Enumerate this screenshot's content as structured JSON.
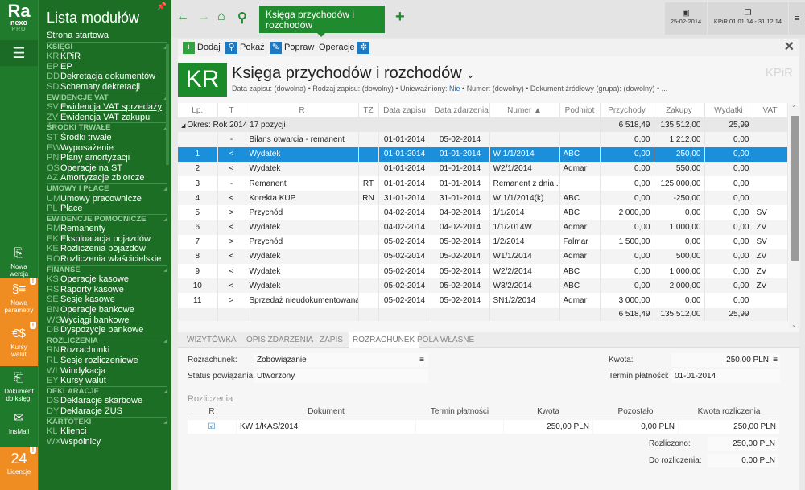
{
  "logo": {
    "line1": "Ra",
    "line2": "nexo",
    "line3": "PRO"
  },
  "side_tiles": [
    {
      "label1": "Nowa",
      "label2": "wersja",
      "icon": "book-arrow-icon",
      "color": "#1f7a2b"
    },
    {
      "label1": "Nowe",
      "label2": "parametry",
      "icon": "paragraph-list-icon",
      "color": "#ef8d23",
      "badge": "!"
    },
    {
      "label1": "Kursy",
      "label2": "walut",
      "icon": "currency-icon",
      "color": "#ef8d23",
      "badge": "!"
    },
    {
      "label1": "Dokument",
      "label2": "do księg.",
      "icon": "document-arrow-icon",
      "color": "#1f7a2b"
    },
    {
      "label1": "InsMail",
      "label2": "",
      "icon": "envelope-icon",
      "color": "#1f7a2b"
    },
    {
      "label1": "Licencje",
      "label2": "",
      "icon_text": "24",
      "color": "#ef8d23",
      "badge": "!"
    }
  ],
  "modules": {
    "title": "Lista modułów",
    "start": "Strona startowa",
    "sections": [
      {
        "name": "KSIĘGI",
        "items": [
          [
            "KR",
            "KPiR"
          ],
          [
            "EP",
            "EP"
          ],
          [
            "DD",
            "Dekretacja dokumentów"
          ],
          [
            "SD",
            "Schematy dekretacji"
          ]
        ]
      },
      {
        "name": "EWIDENCJE VAT",
        "items": [
          [
            "SV",
            "Ewidencja VAT sprzedaży"
          ],
          [
            "ZV",
            "Ewidencja VAT zakupu"
          ]
        ]
      },
      {
        "name": "ŚRODKI TRWAŁE",
        "items": [
          [
            "ST",
            "Środki trwałe"
          ],
          [
            "EW",
            "Wyposażenie"
          ],
          [
            "PN",
            "Plany amortyzacji"
          ],
          [
            "OS",
            "Operacje na ŚT"
          ],
          [
            "AZ",
            "Amortyzacje zbiorcze"
          ]
        ]
      },
      {
        "name": "UMOWY I PŁACE",
        "items": [
          [
            "UM",
            "Umowy pracownicze"
          ],
          [
            "PL",
            "Płace"
          ]
        ]
      },
      {
        "name": "EWIDENCJE POMOCNICZE",
        "items": [
          [
            "RM",
            "Remanenty"
          ],
          [
            "EK",
            "Eksploatacja pojazdów"
          ],
          [
            "KE",
            "Rozliczenia pojazdów"
          ],
          [
            "RO",
            "Rozliczenia właścicielskie"
          ]
        ]
      },
      {
        "name": "FINANSE",
        "items": [
          [
            "KS",
            "Operacje kasowe"
          ],
          [
            "RS",
            "Raporty kasowe"
          ],
          [
            "SE",
            "Sesje kasowe"
          ],
          [
            "BN",
            "Operacje bankowe"
          ],
          [
            "WG",
            "Wyciągi bankowe"
          ],
          [
            "DB",
            "Dyspozycje bankowe"
          ]
        ]
      },
      {
        "name": "ROZLICZENIA",
        "items": [
          [
            "RN",
            "Rozrachunki"
          ],
          [
            "RL",
            "Sesje rozliczeniowe"
          ],
          [
            "WI",
            "Windykacja"
          ],
          [
            "EY",
            "Kursy walut"
          ]
        ]
      },
      {
        "name": "DEKLARACJE",
        "items": [
          [
            "DS",
            "Deklaracje skarbowe"
          ],
          [
            "DY",
            "Deklaracje ZUS"
          ]
        ]
      },
      {
        "name": "KARTOTEKI",
        "items": [
          [
            "KL",
            "Klienci"
          ],
          [
            "WX",
            "Wspólnicy"
          ]
        ]
      }
    ]
  },
  "topbar": {
    "tab": "Księga przychodów i rozchodów",
    "date": "25-02-2014",
    "period": "KPiR  01.01.14 - 31.12.14"
  },
  "toolbar": {
    "add": "Dodaj",
    "show": "Pokaż",
    "edit": "Popraw",
    "ops": "Operacje"
  },
  "header": {
    "badge": "KR",
    "title": "Księga przychodów i rozchodów",
    "watermark": "KPiR",
    "filters": [
      [
        "Data zapisu:",
        "(dowolna)"
      ],
      [
        "Rodzaj zapisu:",
        "(dowolny)"
      ],
      [
        "Unieważniony:",
        "Nie"
      ],
      [
        "Numer:",
        "(dowolny)"
      ],
      [
        "Dokument źródłowy (grupa):",
        "(dowolny)"
      ]
    ],
    "more": "..."
  },
  "grid": {
    "columns": [
      "Lp.",
      "T",
      "R",
      "TZ",
      "Data zapisu",
      "Data zdarzenia",
      "Numer ▲",
      "Podmiot",
      "Przychody",
      "Zakupy",
      "Wydatki",
      "VAT"
    ],
    "group": {
      "label": "Okres: Rok 2014 17 pozycji",
      "przychody": "6 518,49",
      "zakupy": "135 512,00",
      "wydatki": "25,99"
    },
    "rows": [
      [
        "",
        "-",
        "Bilans otwarcia - remanent",
        "",
        "01-01-2014",
        "05-02-2014",
        "",
        "",
        "0,00",
        "1 212,00",
        "0,00",
        ""
      ],
      [
        "1",
        "<",
        "Wydatek",
        "",
        "01-01-2014",
        "01-01-2014",
        "W 1/1/2014",
        "ABC",
        "0,00",
        "250,00",
        "0,00",
        ""
      ],
      [
        "2",
        "<",
        "Wydatek",
        "",
        "01-01-2014",
        "01-01-2014",
        "W2/1/2014",
        "Admar",
        "0,00",
        "550,00",
        "0,00",
        ""
      ],
      [
        "3",
        "-",
        "Remanent",
        "RT",
        "01-01-2014",
        "01-01-2014",
        "Remanent z dnia...",
        "",
        "0,00",
        "125 000,00",
        "0,00",
        ""
      ],
      [
        "4",
        "<",
        "Korekta KUP",
        "RN",
        "31-01-2014",
        "31-01-2014",
        "W 1/1/2014(k)",
        "ABC",
        "0,00",
        "-250,00",
        "0,00",
        ""
      ],
      [
        "5",
        ">",
        "Przychód",
        "",
        "04-02-2014",
        "04-02-2014",
        "1/1/2014",
        "ABC",
        "2 000,00",
        "0,00",
        "0,00",
        "SV"
      ],
      [
        "6",
        "<",
        "Wydatek",
        "",
        "04-02-2014",
        "04-02-2014",
        "1/1/2014W",
        "Admar",
        "0,00",
        "1 000,00",
        "0,00",
        "ZV"
      ],
      [
        "7",
        ">",
        "Przychód",
        "",
        "05-02-2014",
        "05-02-2014",
        "1/2/2014",
        "Falmar",
        "1 500,00",
        "0,00",
        "0,00",
        "SV"
      ],
      [
        "8",
        "<",
        "Wydatek",
        "",
        "05-02-2014",
        "05-02-2014",
        "W1/1/2014",
        "Admar",
        "0,00",
        "500,00",
        "0,00",
        "ZV"
      ],
      [
        "9",
        "<",
        "Wydatek",
        "",
        "05-02-2014",
        "05-02-2014",
        "W2/2/2014",
        "ABC",
        "0,00",
        "1 000,00",
        "0,00",
        "ZV"
      ],
      [
        "10",
        "<",
        "Wydatek",
        "",
        "05-02-2014",
        "05-02-2014",
        "W3/2/2014",
        "ABC",
        "0,00",
        "2 000,00",
        "0,00",
        "ZV"
      ],
      [
        "11",
        ">",
        "Sprzedaż nieudokumentowana",
        "",
        "05-02-2014",
        "05-02-2014",
        "SN1/2/2014",
        "Admar",
        "3 000,00",
        "0,00",
        "0,00",
        ""
      ]
    ],
    "selected_row": 1,
    "footer": {
      "przychody": "6 518,49",
      "zakupy": "135 512,00",
      "wydatki": "25,99"
    }
  },
  "tabs": [
    "WIZYTÓWKA",
    "OPIS ZDARZENIA",
    "ZAPIS",
    "ROZRACHUNEK",
    "POLA WŁASNE"
  ],
  "active_tab": "ROZRACHUNEK",
  "form": {
    "rozrachunek_label": "Rozrachunek:",
    "rozrachunek": "Zobowiązanie",
    "status_label": "Status powiązania:",
    "status": "Utworzony",
    "kwota_label": "Kwota:",
    "kwota": "250,00 PLN",
    "termin_label": "Termin płatności:",
    "termin": "01-01-2014"
  },
  "rozliczenia": {
    "title": "Rozliczenia",
    "columns": [
      "R",
      "Dokument",
      "Termin płatności",
      "Kwota",
      "Pozostało",
      "Kwota rozliczenia"
    ],
    "row": {
      "checked": true,
      "dokument": "KW 1/KAS/2014",
      "termin": "",
      "kwota": "250,00 PLN",
      "pozostalo": "0,00 PLN",
      "kwota_rozl": "250,00 PLN"
    },
    "rozliczono_label": "Rozliczono:",
    "rozliczono": "250,00 PLN",
    "do_label": "Do rozliczenia:",
    "do": "0,00 PLN"
  }
}
